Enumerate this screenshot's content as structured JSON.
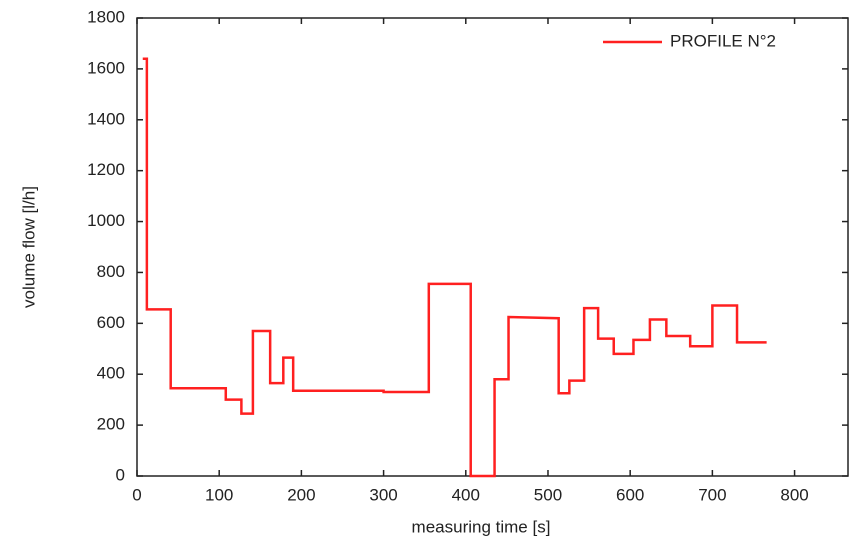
{
  "chart_data": {
    "type": "line",
    "x_label": "measuring time [s]",
    "y_label": "volume flow [l/h]",
    "x": [
      7,
      12,
      12,
      41,
      41,
      108,
      108,
      127,
      127,
      141,
      141,
      162,
      162,
      178,
      178,
      190,
      190,
      300,
      300,
      355,
      355,
      406,
      406,
      435,
      435,
      452,
      452,
      513,
      513,
      526,
      526,
      544,
      544,
      561,
      561,
      580,
      580,
      604,
      604,
      624,
      624,
      644,
      644,
      673,
      673,
      700,
      700,
      730,
      730,
      766
    ],
    "series": [
      {
        "name": "PROFILE N°2",
        "color": "#ff2020",
        "values": [
          1640,
          1640,
          655,
          655,
          345,
          345,
          300,
          300,
          245,
          245,
          570,
          570,
          365,
          365,
          465,
          465,
          335,
          335,
          330,
          330,
          755,
          755,
          0,
          0,
          380,
          380,
          625,
          620,
          325,
          325,
          375,
          375,
          660,
          660,
          540,
          540,
          480,
          480,
          535,
          535,
          615,
          615,
          550,
          550,
          510,
          510,
          670,
          670,
          525,
          525
        ]
      }
    ],
    "xlim": [
      0,
      865
    ],
    "ylim": [
      0,
      1800
    ],
    "xticks": [
      0,
      100,
      200,
      300,
      400,
      500,
      600,
      700,
      800
    ],
    "yticks": [
      0,
      200,
      400,
      600,
      800,
      1000,
      1200,
      1400,
      1600,
      1800
    ],
    "legend": "upper right"
  }
}
